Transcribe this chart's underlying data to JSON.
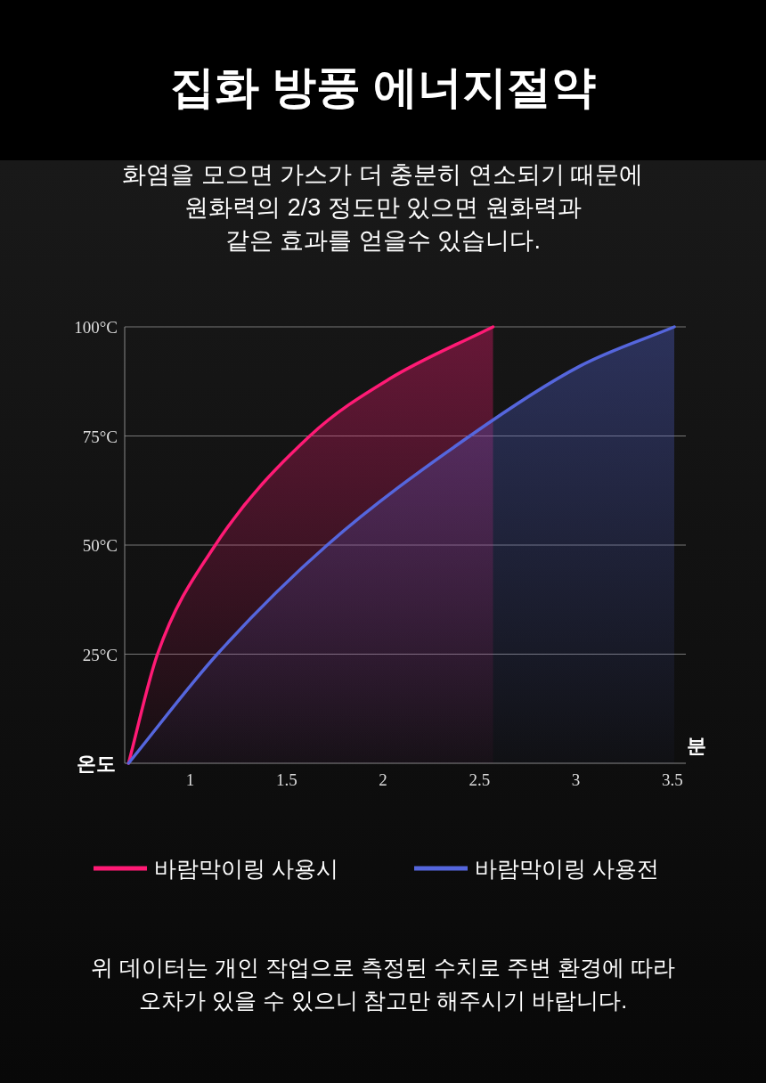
{
  "chart_data": {
    "type": "area",
    "title": "집화 방풍 에너지절약",
    "subtitle": "화염을 모으면 가스가 더 충분히 연소되기 때문에\n원화력의 2/3 정도만 있으면 원화력과\n같은 효과를 얻을수 있습니다.",
    "xlabel": "분",
    "ylabel": "온도",
    "xlim": [
      0.66,
      3.57
    ],
    "xticks": [
      1,
      1.5,
      2,
      2.5,
      3,
      3.5
    ],
    "ylim": [
      0,
      100
    ],
    "yticks": [
      {
        "value": 25,
        "label": "25°C"
      },
      {
        "value": 50,
        "label": "50°C"
      },
      {
        "value": 75,
        "label": "75°C"
      },
      {
        "value": 100,
        "label": "100°C"
      }
    ],
    "grid": "y",
    "legend": "bottom",
    "series": [
      {
        "name": "바람막이링 사용시",
        "color": "#ff1a75",
        "x": [
          0.68,
          0.83,
          1.13,
          1.62,
          2.03,
          2.57
        ],
        "values": [
          0,
          25,
          50,
          75,
          88,
          100
        ]
      },
      {
        "name": "바람막이링 사용전",
        "color": "#5566dd",
        "x": [
          0.68,
          1.14,
          1.71,
          2.45,
          3.02,
          3.51
        ],
        "values": [
          0,
          25,
          50,
          75,
          91,
          100
        ]
      }
    ],
    "annotations": [
      "위 데이터는 개인 작업으로 측정된 수치로 주변 환경에 따라\n오차가 있을 수 있으니 참고만 해주시기 바랍니다."
    ]
  }
}
